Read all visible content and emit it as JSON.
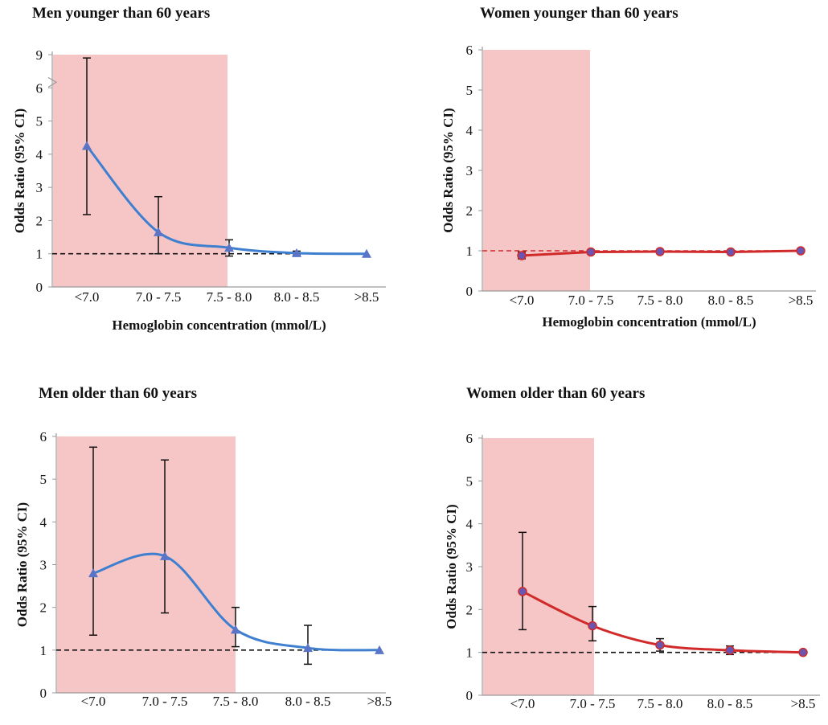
{
  "chart_data": [
    {
      "type": "line",
      "title": "Men younger than 60 years",
      "xlabel": "Hemoglobin concentration (mmol/L)",
      "ylabel": "Odds Ratio (95% CI)",
      "categories": [
        "<7.0",
        "7.0 - 7.5",
        "7.5 - 8.0",
        "8.0 - 8.5",
        ">8.5"
      ],
      "yticks": [
        "0",
        "1",
        "2",
        "3",
        "4",
        "5",
        "6",
        "9"
      ],
      "ylim": [
        0,
        9
      ],
      "axis_break": "between 6 and 9",
      "series": [
        {
          "values": [
            4.25,
            1.65,
            1.18,
            1.02,
            1.0
          ],
          "ci_lower": [
            2.18,
            1.0,
            0.93,
            0.96,
            null
          ],
          "ci_upper": [
            8.7,
            2.72,
            1.42,
            1.08,
            null
          ]
        }
      ],
      "marker": "triangle",
      "line_color": "#3f7fd0",
      "marker_color": "#5a74c8",
      "shaded_region": {
        "from": "<7.0",
        "to": "7.5 - 8.0",
        "color": "#f6c6c6"
      },
      "reference_line": 1,
      "grid": false
    },
    {
      "type": "line",
      "title": "Women younger than 60 years",
      "xlabel": "Hemoglobin concentration (mmol/L)",
      "ylabel": "Odds Ratio (95% CI)",
      "categories": [
        "<7.0",
        "7.0 - 7.5",
        "7.5 - 8.0",
        "8.0 - 8.5",
        ">8.5"
      ],
      "yticks": [
        "0",
        "1",
        "2",
        "3",
        "4",
        "5",
        "6"
      ],
      "ylim": [
        0,
        6
      ],
      "series": [
        {
          "values": [
            0.88,
            0.97,
            0.98,
            0.97,
            1.0
          ],
          "ci_lower": [
            0.8,
            0.92,
            null,
            null,
            null
          ],
          "ci_upper": [
            0.97,
            1.02,
            null,
            null,
            null
          ]
        }
      ],
      "marker": "circle",
      "line_color": "#d02a2a",
      "marker_color": "#6a55b0",
      "shaded_region": {
        "from": "<7.0",
        "to": "7.0 - 7.5",
        "color": "#f6c6c6"
      },
      "reference_line": 1,
      "reference_line_color": "#d02a2a",
      "grid": false
    },
    {
      "type": "line",
      "title": "Men  older than 60 years",
      "xlabel": "Hemoglobin concentration (mmol/L)",
      "ylabel": "Odds Ratio (95% CI)",
      "categories": [
        "<7.0",
        "7.0 - 7.5",
        "7.5 - 8.0",
        "8.0 - 8.5",
        ">8.5"
      ],
      "yticks": [
        "0",
        "1",
        "2",
        "3",
        "4",
        "5",
        "6"
      ],
      "ylim": [
        0,
        6
      ],
      "series": [
        {
          "values": [
            2.8,
            3.2,
            1.48,
            1.05,
            1.0
          ],
          "ci_lower": [
            1.35,
            1.87,
            1.08,
            0.67,
            null
          ],
          "ci_upper": [
            5.75,
            5.45,
            2.0,
            1.58,
            null
          ]
        }
      ],
      "marker": "triangle",
      "line_color": "#3f7fd0",
      "marker_color": "#5a74c8",
      "shaded_region": {
        "from": "<7.0",
        "to": "7.5 - 8.0",
        "color": "#f6c6c6"
      },
      "reference_line": 1,
      "grid": false
    },
    {
      "type": "line",
      "title": "Women older than 60 years",
      "xlabel": "Hemoglobin concentration (mmol/L)",
      "ylabel": "Odds Ratio (95% CI)",
      "categories": [
        "<7.0",
        "7.0 - 7.5",
        "7.5 - 8.0",
        "8.0 - 8.5",
        ">8.5"
      ],
      "yticks": [
        "0",
        "1",
        "2",
        "3",
        "4",
        "5",
        "6"
      ],
      "ylim": [
        0,
        6
      ],
      "series": [
        {
          "values": [
            2.42,
            1.62,
            1.17,
            1.05,
            1.0
          ],
          "ci_lower": [
            1.53,
            1.27,
            1.03,
            0.95,
            null
          ],
          "ci_upper": [
            3.8,
            2.07,
            1.32,
            1.15,
            null
          ]
        }
      ],
      "marker": "circle",
      "line_color": "#d02a2a",
      "marker_color": "#6a55b0",
      "shaded_region": {
        "from": "<7.0",
        "to": "7.0 - 7.5",
        "color": "#f6c6c6"
      },
      "reference_line": 1,
      "grid": false
    }
  ]
}
